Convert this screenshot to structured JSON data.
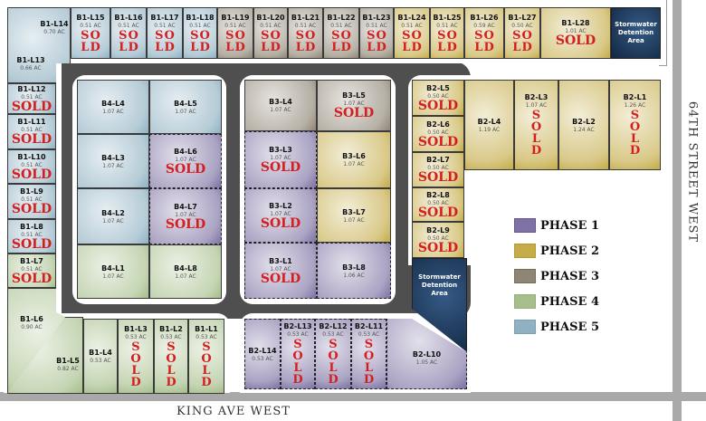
{
  "phase_colors": {
    "1": "#7d72a3",
    "2": "#c4ac48",
    "3": "#8f8574",
    "4": "#a5be8b",
    "5": "#8fb1c2"
  },
  "sold_label": "SOLD",
  "streets": {
    "south": "KING AVE WEST",
    "east": "64TH STREET WEST"
  },
  "ponds": [
    {
      "label": "Stormwater Detention Area"
    },
    {
      "label": "Stormwater Detention Area"
    }
  ],
  "legend": [
    {
      "label": "PHASE 1",
      "phase": "1"
    },
    {
      "label": "PHASE 2",
      "phase": "2"
    },
    {
      "label": "PHASE 3",
      "phase": "3"
    },
    {
      "label": "PHASE 4",
      "phase": "4"
    },
    {
      "label": "PHASE 5",
      "phase": "5"
    }
  ],
  "lots": [
    {
      "id": "B1-L14",
      "acres": "0.70 AC",
      "phase": "5",
      "sold": false
    },
    {
      "id": "B1-L13",
      "acres": "0.66 AC",
      "phase": "5",
      "sold": false
    },
    {
      "id": "B1-L15",
      "acres": "0.51 AC",
      "phase": "5",
      "sold": true
    },
    {
      "id": "B1-L16",
      "acres": "0.51 AC",
      "phase": "5",
      "sold": true
    },
    {
      "id": "B1-L17",
      "acres": "0.51 AC",
      "phase": "5",
      "sold": true
    },
    {
      "id": "B1-L18",
      "acres": "0.51 AC",
      "phase": "5",
      "sold": true
    },
    {
      "id": "B1-L19",
      "acres": "0.51 AC",
      "phase": "3",
      "sold": true
    },
    {
      "id": "B1-L20",
      "acres": "0.51 AC",
      "phase": "3",
      "sold": true
    },
    {
      "id": "B1-L21",
      "acres": "0.51 AC",
      "phase": "3",
      "sold": true
    },
    {
      "id": "B1-L22",
      "acres": "0.51 AC",
      "phase": "3",
      "sold": true
    },
    {
      "id": "B1-L23",
      "acres": "0.51 AC",
      "phase": "3",
      "sold": true
    },
    {
      "id": "B1-L24",
      "acres": "0.51 AC",
      "phase": "2",
      "sold": true
    },
    {
      "id": "B1-L25",
      "acres": "0.51 AC",
      "phase": "2",
      "sold": true
    },
    {
      "id": "B1-L26",
      "acres": "0.59 AC",
      "phase": "2",
      "sold": true
    },
    {
      "id": "B1-L27",
      "acres": "0.50 AC",
      "phase": "2",
      "sold": true
    },
    {
      "id": "B1-L28",
      "acres": "1.01 AC",
      "phase": "2",
      "sold": true
    },
    {
      "id": "B1-L12",
      "acres": "0.51 AC",
      "phase": "5",
      "sold": true
    },
    {
      "id": "B1-L11",
      "acres": "0.51 AC",
      "phase": "5",
      "sold": true
    },
    {
      "id": "B1-L10",
      "acres": "0.51 AC",
      "phase": "5",
      "sold": true
    },
    {
      "id": "B1-L9",
      "acres": "0.51 AC",
      "phase": "5",
      "sold": true
    },
    {
      "id": "B1-L8",
      "acres": "0.51 AC",
      "phase": "5",
      "sold": true
    },
    {
      "id": "B1-L7",
      "acres": "0.51 AC",
      "phase": "4",
      "sold": true
    },
    {
      "id": "B1-L6",
      "acres": "0.90 AC",
      "phase": "4",
      "sold": false
    },
    {
      "id": "B1-L5",
      "acres": "0.82 AC",
      "phase": "4",
      "sold": false
    },
    {
      "id": "B1-L4",
      "acres": "0.53 AC",
      "phase": "4",
      "sold": false
    },
    {
      "id": "B1-L3",
      "acres": "0.53 AC",
      "phase": "4",
      "sold": true
    },
    {
      "id": "B1-L2",
      "acres": "0.53 AC",
      "phase": "4",
      "sold": true
    },
    {
      "id": "B1-L1",
      "acres": "0.53 AC",
      "phase": "4",
      "sold": true
    },
    {
      "id": "B4-L4",
      "acres": "1.07 AC",
      "phase": "5",
      "sold": false
    },
    {
      "id": "B4-L5",
      "acres": "1.07 AC",
      "phase": "5",
      "sold": false
    },
    {
      "id": "B4-L3",
      "acres": "1.07 AC",
      "phase": "5",
      "sold": false
    },
    {
      "id": "B4-L6",
      "acres": "1.07 AC",
      "phase": "1",
      "sold": true
    },
    {
      "id": "B4-L2",
      "acres": "1.07 AC",
      "phase": "5",
      "sold": false
    },
    {
      "id": "B4-L7",
      "acres": "1.07 AC",
      "phase": "1",
      "sold": true
    },
    {
      "id": "B4-L1",
      "acres": "1.07 AC",
      "phase": "4",
      "sold": false
    },
    {
      "id": "B4-L8",
      "acres": "1.07 AC",
      "phase": "4",
      "sold": false
    },
    {
      "id": "B3-L4",
      "acres": "1.07 AC",
      "phase": "3",
      "sold": false
    },
    {
      "id": "B3-L5",
      "acres": "1.07 AC",
      "phase": "3",
      "sold": true
    },
    {
      "id": "B3-L3",
      "acres": "1.07 AC",
      "phase": "1",
      "sold": true
    },
    {
      "id": "B3-L6",
      "acres": "1.07 AC",
      "phase": "2",
      "sold": false
    },
    {
      "id": "B3-L2",
      "acres": "1.07 AC",
      "phase": "1",
      "sold": true
    },
    {
      "id": "B3-L7",
      "acres": "1.07 AC",
      "phase": "2",
      "sold": false
    },
    {
      "id": "B3-L1",
      "acres": "1.07 AC",
      "phase": "1",
      "sold": true
    },
    {
      "id": "B3-L8",
      "acres": "1.06 AC",
      "phase": "1",
      "sold": false
    },
    {
      "id": "B2-L5",
      "acres": "0.50 AC",
      "phase": "2",
      "sold": true
    },
    {
      "id": "B2-L6",
      "acres": "0.50 AC",
      "phase": "2",
      "sold": true
    },
    {
      "id": "B2-L7",
      "acres": "0.50 AC",
      "phase": "2",
      "sold": true
    },
    {
      "id": "B2-L8",
      "acres": "0.50 AC",
      "phase": "2",
      "sold": true
    },
    {
      "id": "B2-L9",
      "acres": "0.50 AC",
      "phase": "2",
      "sold": true
    },
    {
      "id": "B2-L4",
      "acres": "1.19 AC",
      "phase": "2",
      "sold": false
    },
    {
      "id": "B2-L3",
      "acres": "1.07 AC",
      "phase": "2",
      "sold": true
    },
    {
      "id": "B2-L2",
      "acres": "1.24 AC",
      "phase": "2",
      "sold": false
    },
    {
      "id": "B2-L1",
      "acres": "1.26 AC",
      "phase": "2",
      "sold": true
    },
    {
      "id": "B2-L14",
      "acres": "0.53 AC",
      "phase": "1",
      "sold": false
    },
    {
      "id": "B2-L13",
      "acres": "0.53 AC",
      "phase": "1",
      "sold": true
    },
    {
      "id": "B2-L12",
      "acres": "0.53 AC",
      "phase": "1",
      "sold": true
    },
    {
      "id": "B2-L11",
      "acres": "0.53 AC",
      "phase": "1",
      "sold": true
    },
    {
      "id": "B2-L10",
      "acres": "1.05 AC",
      "phase": "1",
      "sold": false
    }
  ]
}
